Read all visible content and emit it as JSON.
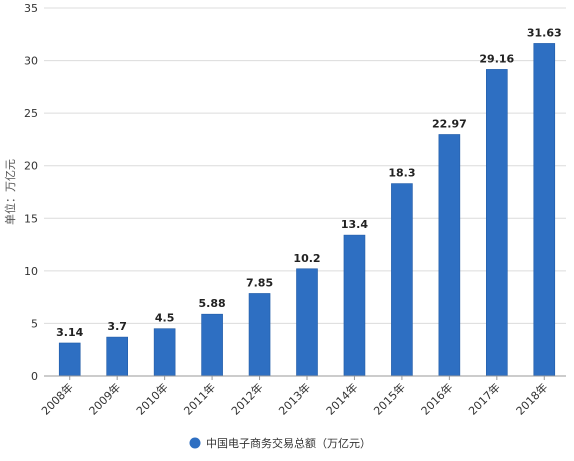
{
  "chart_data": {
    "type": "bar",
    "title": "",
    "xlabel": "",
    "ylabel": "单位：万亿元",
    "categories": [
      "2008年",
      "2009年",
      "2010年",
      "2011年",
      "2012年",
      "2013年",
      "2014年",
      "2015年",
      "2016年",
      "2017年",
      "2018年"
    ],
    "series": [
      {
        "name": "中国电子商务交易总额（万亿元）",
        "values": [
          3.14,
          3.7,
          4.5,
          5.88,
          7.85,
          10.2,
          13.4,
          18.3,
          22.97,
          29.16,
          31.63
        ],
        "color": "#2e6fc2"
      }
    ],
    "value_labels": [
      "3.14",
      "3.7",
      "4.5",
      "5.88",
      "7.85",
      "10.2",
      "13.4",
      "18.3",
      "22.97",
      "29.16",
      "31.63"
    ],
    "ylim": [
      0,
      35
    ],
    "yticks": [
      0,
      5,
      10,
      15,
      20,
      25,
      30,
      35
    ],
    "grid": true,
    "legend_position": "bottom"
  }
}
